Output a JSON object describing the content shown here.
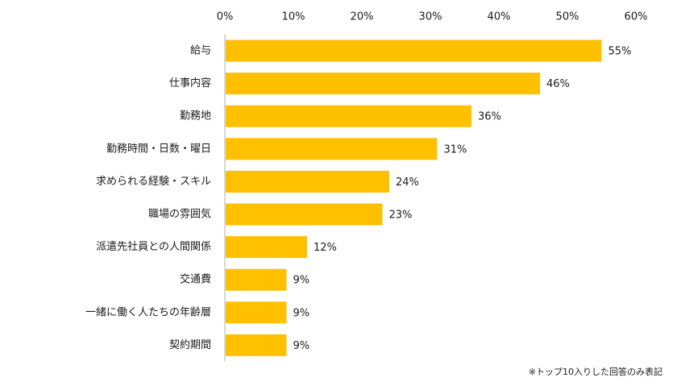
{
  "chart_data": {
    "type": "bar",
    "orientation": "horizontal",
    "categories": [
      "給与",
      "仕事内容",
      "勤務地",
      "勤務時間・日数・曜日",
      "求められる経験・スキル",
      "職場の雰囲気",
      "派遣先社員との人間関係",
      "交通費",
      "一緒に働く人たちの年齢層",
      "契約期間"
    ],
    "values": [
      55,
      46,
      36,
      31,
      24,
      23,
      12,
      9,
      9,
      9
    ],
    "value_labels": [
      "55%",
      "46%",
      "36%",
      "31%",
      "24%",
      "23%",
      "12%",
      "9%",
      "9%",
      "9%"
    ],
    "x_ticks": [
      0,
      10,
      20,
      30,
      40,
      50,
      60
    ],
    "x_tick_labels": [
      "0%",
      "10%",
      "20%",
      "30%",
      "40%",
      "50%",
      "60%"
    ],
    "xlim": [
      0,
      60
    ],
    "axis_position": "top",
    "grid": false,
    "legend": "none",
    "bar_color": "#FFC000"
  },
  "footnote": "※トップ10入りした回答のみ表記"
}
